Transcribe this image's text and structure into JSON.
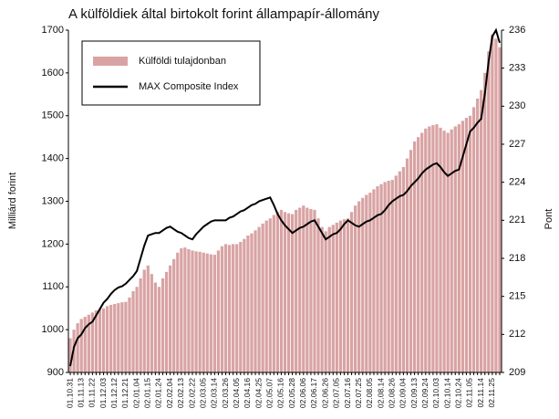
{
  "chart_data": {
    "type": "bar",
    "title": "A külföldiek által birtokolt forint állampapír-állomány",
    "y_label": "Milliárd forint",
    "y2_label": "Pont",
    "legend": "upper left",
    "categories": [
      "01.10.31",
      null,
      null,
      "01.11.13",
      null,
      null,
      "01.11.22",
      null,
      null,
      "01.12.03",
      null,
      null,
      "01.12.12",
      null,
      null,
      "01.12.21",
      null,
      null,
      "02.01.04",
      null,
      null,
      "02.01.15",
      null,
      null,
      "02.01.24",
      null,
      null,
      "02.02.04",
      null,
      null,
      "02.02.13",
      null,
      null,
      "02.02.22",
      null,
      null,
      "02.03.05",
      null,
      null,
      "02.03.14",
      null,
      null,
      "02.03.26",
      null,
      null,
      "02.04.05",
      null,
      null,
      "02.04.16",
      null,
      null,
      "02.04.25",
      null,
      null,
      "02.05.07",
      null,
      null,
      "02.05.16",
      null,
      null,
      "02.05.28",
      null,
      null,
      "02.06.06",
      null,
      null,
      "02.06.17",
      null,
      null,
      "02.06.26",
      null,
      null,
      "02.07.05",
      null,
      null,
      "02.07.16",
      null,
      null,
      "02.07.25",
      null,
      null,
      "02.08.05",
      null,
      null,
      "02.08.14",
      null,
      null,
      "02.08.26",
      null,
      null,
      "02.09.04",
      null,
      null,
      "02.09.13",
      null,
      null,
      "02.09.24",
      null,
      null,
      "02.10.03",
      null,
      null,
      "02.10.14",
      null,
      null,
      "02.10.24",
      null,
      null,
      "02.11.05",
      null,
      null,
      "02.11.14",
      null,
      null,
      "02.11.25",
      null,
      null
    ],
    "series": [
      {
        "name": "Külföldi tulajdonban",
        "type": "bar",
        "color": "#d9a3a3",
        "values": [
          980,
          1000,
          1015,
          1025,
          1030,
          1035,
          1040,
          1045,
          1048,
          1050,
          1055,
          1058,
          1060,
          1062,
          1064,
          1065,
          1075,
          1090,
          1100,
          1120,
          1140,
          1150,
          1130,
          1110,
          1100,
          1120,
          1135,
          1150,
          1165,
          1180,
          1190,
          1192,
          1188,
          1185,
          1183,
          1182,
          1180,
          1178,
          1176,
          1175,
          1185,
          1195,
          1200,
          1198,
          1200,
          1200,
          1205,
          1212,
          1220,
          1225,
          1232,
          1240,
          1248,
          1255,
          1260,
          1268,
          1275,
          1280,
          1275,
          1272,
          1270,
          1280,
          1285,
          1290,
          1285,
          1282,
          1280,
          1260,
          1240,
          1230,
          1240,
          1245,
          1250,
          1255,
          1258,
          1260,
          1275,
          1290,
          1300,
          1308,
          1315,
          1320,
          1328,
          1335,
          1340,
          1345,
          1348,
          1350,
          1360,
          1370,
          1380,
          1400,
          1420,
          1440,
          1450,
          1460,
          1470,
          1475,
          1478,
          1480,
          1472,
          1465,
          1460,
          1468,
          1475,
          1480,
          1488,
          1495,
          1500,
          1520,
          1540,
          1560,
          1600,
          1650,
          1690,
          1680,
          1660
        ]
      },
      {
        "name": "MAX Composite Index",
        "type": "line",
        "axis": "y2",
        "color": "#000000",
        "values": [
          209.5,
          211,
          211.7,
          212,
          212.5,
          212.8,
          213,
          213.5,
          214,
          214.5,
          214.8,
          215.2,
          215.5,
          215.7,
          215.8,
          216,
          216.3,
          216.6,
          217,
          218,
          219,
          219.8,
          219.9,
          220,
          220,
          220.2,
          220.4,
          220.5,
          220.3,
          220.1,
          220,
          219.8,
          219.6,
          219.5,
          219.9,
          220.2,
          220.5,
          220.7,
          220.9,
          221,
          221,
          221,
          221,
          221.2,
          221.3,
          221.5,
          221.7,
          221.8,
          222,
          222.2,
          222.3,
          222.5,
          222.6,
          222.7,
          222.8,
          222.2,
          221.5,
          221,
          220.6,
          220.3,
          220,
          220.2,
          220.4,
          220.5,
          220.7,
          220.9,
          221,
          220.5,
          220,
          219.5,
          219.7,
          219.9,
          220,
          220.3,
          220.7,
          221,
          220.8,
          220.6,
          220.5,
          220.7,
          220.9,
          221,
          221.2,
          221.4,
          221.5,
          221.8,
          222.2,
          222.5,
          222.7,
          222.9,
          223,
          223.3,
          223.7,
          224,
          224.3,
          224.7,
          225,
          225.2,
          225.4,
          225.5,
          225.2,
          224.8,
          224.5,
          224.7,
          224.9,
          225,
          226,
          227,
          228,
          228.3,
          228.7,
          229,
          231,
          233.5,
          235.5,
          236,
          235
        ]
      }
    ],
    "ylim": [
      900,
      1700
    ],
    "yticks": [
      900,
      1000,
      1100,
      1200,
      1300,
      1400,
      1500,
      1600,
      1700
    ],
    "y2lim": [
      209,
      236
    ],
    "y2ticks": [
      209,
      212,
      215,
      218,
      221,
      224,
      227,
      230,
      233,
      236
    ]
  }
}
